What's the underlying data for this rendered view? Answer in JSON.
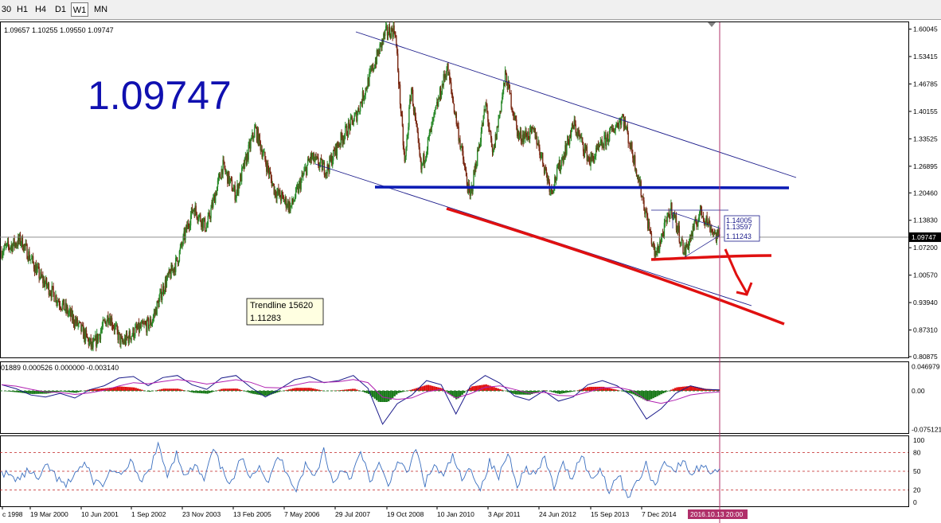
{
  "toolbar": {
    "timeframes": [
      {
        "label": "30",
        "active": false
      },
      {
        "label": "H1",
        "active": false
      },
      {
        "label": "H4",
        "active": false
      },
      {
        "label": "D1",
        "active": false
      },
      {
        "label": "W1",
        "active": true
      },
      {
        "label": "MN",
        "active": false
      }
    ]
  },
  "ohlc_text": "1.09657 1.10255 1.09550 1.09747",
  "big_price": "1.09747",
  "current_price_label": "1.09747",
  "tooltip": {
    "line1": "Trendline 15620",
    "line2": "1.11283"
  },
  "box_labels": [
    "1.14005",
    "1.13597",
    "1.11243"
  ],
  "macd_text": "01889 0.000526 0.000000 -0.003140",
  "time_label": "2016.10.13 20:00",
  "colors": {
    "background": "#ffffff",
    "bull_bar": "#2a8a2a",
    "bear_bar": "#7a2a14",
    "channel_line": "#1a1a8a",
    "support_line": "#0a1ab4",
    "annotation_red": "#e01010",
    "macd_hist_pos": "#e01010",
    "macd_hist_neg": "#1a7a1a",
    "macd_line": "#1a1a8a",
    "signal_line": "#b020b0",
    "osc_line": "#3b6fbf",
    "vline": "#b0306a"
  },
  "chart_data": [
    {
      "type": "candlestick",
      "instrument_timeframe": "W1",
      "y_ticks": [
        1.60045,
        1.53415,
        1.46785,
        1.40155,
        1.33525,
        1.26895,
        1.2046,
        1.1383,
        1.072,
        1.0057,
        0.9394,
        0.8731,
        0.80875
      ],
      "ylim": [
        0.80875,
        1.6227
      ],
      "x_labels": [
        "c 1998",
        "19 Mar 2000",
        "10 Jun 2001",
        "1 Sep 2002",
        "23 Nov 2003",
        "13 Feb 2005",
        "7 May 2006",
        "29 Jul 2007",
        "19 Oct 2008",
        "10 Jan 2010",
        "3 Apr 2011",
        "24 Jun 2012",
        "15 Sep 2013",
        "7 Dec 2014"
      ],
      "price_path": [
        [
          "1998-06",
          1.065
        ],
        [
          "1998-12",
          1.09
        ],
        [
          "1999-06",
          1.0
        ],
        [
          "2000-01",
          0.93
        ],
        [
          "2000-06",
          0.88
        ],
        [
          "2000-10",
          0.83
        ],
        [
          "2001-03",
          0.91
        ],
        [
          "2001-07",
          0.84
        ],
        [
          "2001-11",
          0.87
        ],
        [
          "2002-04",
          0.89
        ],
        [
          "2002-08",
          0.98
        ],
        [
          "2002-12",
          1.04
        ],
        [
          "2003-05",
          1.17
        ],
        [
          "2003-09",
          1.12
        ],
        [
          "2004-02",
          1.27
        ],
        [
          "2004-06",
          1.2
        ],
        [
          "2004-12",
          1.36
        ],
        [
          "2005-06",
          1.21
        ],
        [
          "2005-11",
          1.17
        ],
        [
          "2006-05",
          1.29
        ],
        [
          "2006-10",
          1.26
        ],
        [
          "2007-02",
          1.33
        ],
        [
          "2007-07",
          1.39
        ],
        [
          "2007-11",
          1.48
        ],
        [
          "2008-04",
          1.59
        ],
        [
          "2008-07",
          1.6
        ],
        [
          "2008-10",
          1.27
        ],
        [
          "2008-12",
          1.46
        ],
        [
          "2009-03",
          1.26
        ],
        [
          "2009-11",
          1.51
        ],
        [
          "2010-06",
          1.19
        ],
        [
          "2010-11",
          1.42
        ],
        [
          "2011-01",
          1.29
        ],
        [
          "2011-05",
          1.49
        ],
        [
          "2011-09",
          1.34
        ],
        [
          "2012-02",
          1.35
        ],
        [
          "2012-07",
          1.21
        ],
        [
          "2013-02",
          1.37
        ],
        [
          "2013-07",
          1.28
        ],
        [
          "2014-05",
          1.39
        ],
        [
          "2014-09",
          1.27
        ],
        [
          "2015-03",
          1.05
        ],
        [
          "2015-08",
          1.17
        ],
        [
          "2015-12",
          1.06
        ],
        [
          "2016-05",
          1.16
        ],
        [
          "2016-10",
          1.0975
        ]
      ],
      "current_price": 1.09747,
      "levels": [
        {
          "name": "Trendline 15620",
          "value": 1.11283
        },
        {
          "value": 1.14005
        },
        {
          "value": 1.13597
        },
        {
          "value": 1.11243
        }
      ]
    },
    {
      "type": "line",
      "name": "MACD",
      "y_ticks": [
        0.046979,
        0.0,
        -0.075121
      ],
      "ylim": [
        -0.082,
        0.052
      ],
      "series": [
        {
          "values": [
            0.012,
            0.004,
            -0.008,
            -0.012,
            -0.005,
            -0.014,
            0.002,
            0.01,
            0.025,
            0.028,
            0.01,
            0.026,
            0.03,
            0.012,
            0.003,
            0.025,
            0.03,
            0.007,
            -0.012,
            0.004,
            0.022,
            0.028,
            0.016,
            0.02,
            0.03,
            0.005,
            -0.065,
            -0.025,
            -0.008,
            0.02,
            0.012,
            -0.045,
            0.01,
            0.03,
            0.015,
            -0.01,
            -0.018,
            0.0,
            -0.02,
            -0.012,
            0.012,
            0.02,
            0.01,
            -0.01,
            -0.055,
            -0.035,
            -0.005,
            0.01,
            0.003,
            0.002
          ]
        }
      ]
    },
    {
      "type": "line",
      "name": "oscillator",
      "y_ticks": [
        100,
        80,
        50,
        20,
        0
      ],
      "ylim": [
        0,
        100
      ],
      "reference_levels": [
        80,
        50,
        20
      ],
      "series": [
        {
          "values": [
            50,
            40,
            38,
            52,
            35,
            60,
            38,
            25,
            48,
            62,
            35,
            28,
            55,
            38,
            70,
            30,
            50,
            90,
            45,
            80,
            40,
            60,
            35,
            85,
            50,
            30,
            70,
            45,
            60,
            30,
            75,
            50,
            20,
            60,
            40,
            85,
            30,
            55,
            40,
            80,
            35,
            60,
            25,
            70,
            45,
            85,
            30,
            60,
            40,
            75,
            35,
            55,
            20,
            65,
            40,
            80,
            30,
            55,
            45,
            70,
            25,
            60,
            40,
            80,
            35,
            55,
            20,
            45,
            10,
            30,
            60,
            25,
            70,
            50,
            65,
            45,
            60,
            50,
            55
          ]
        }
      ]
    }
  ]
}
